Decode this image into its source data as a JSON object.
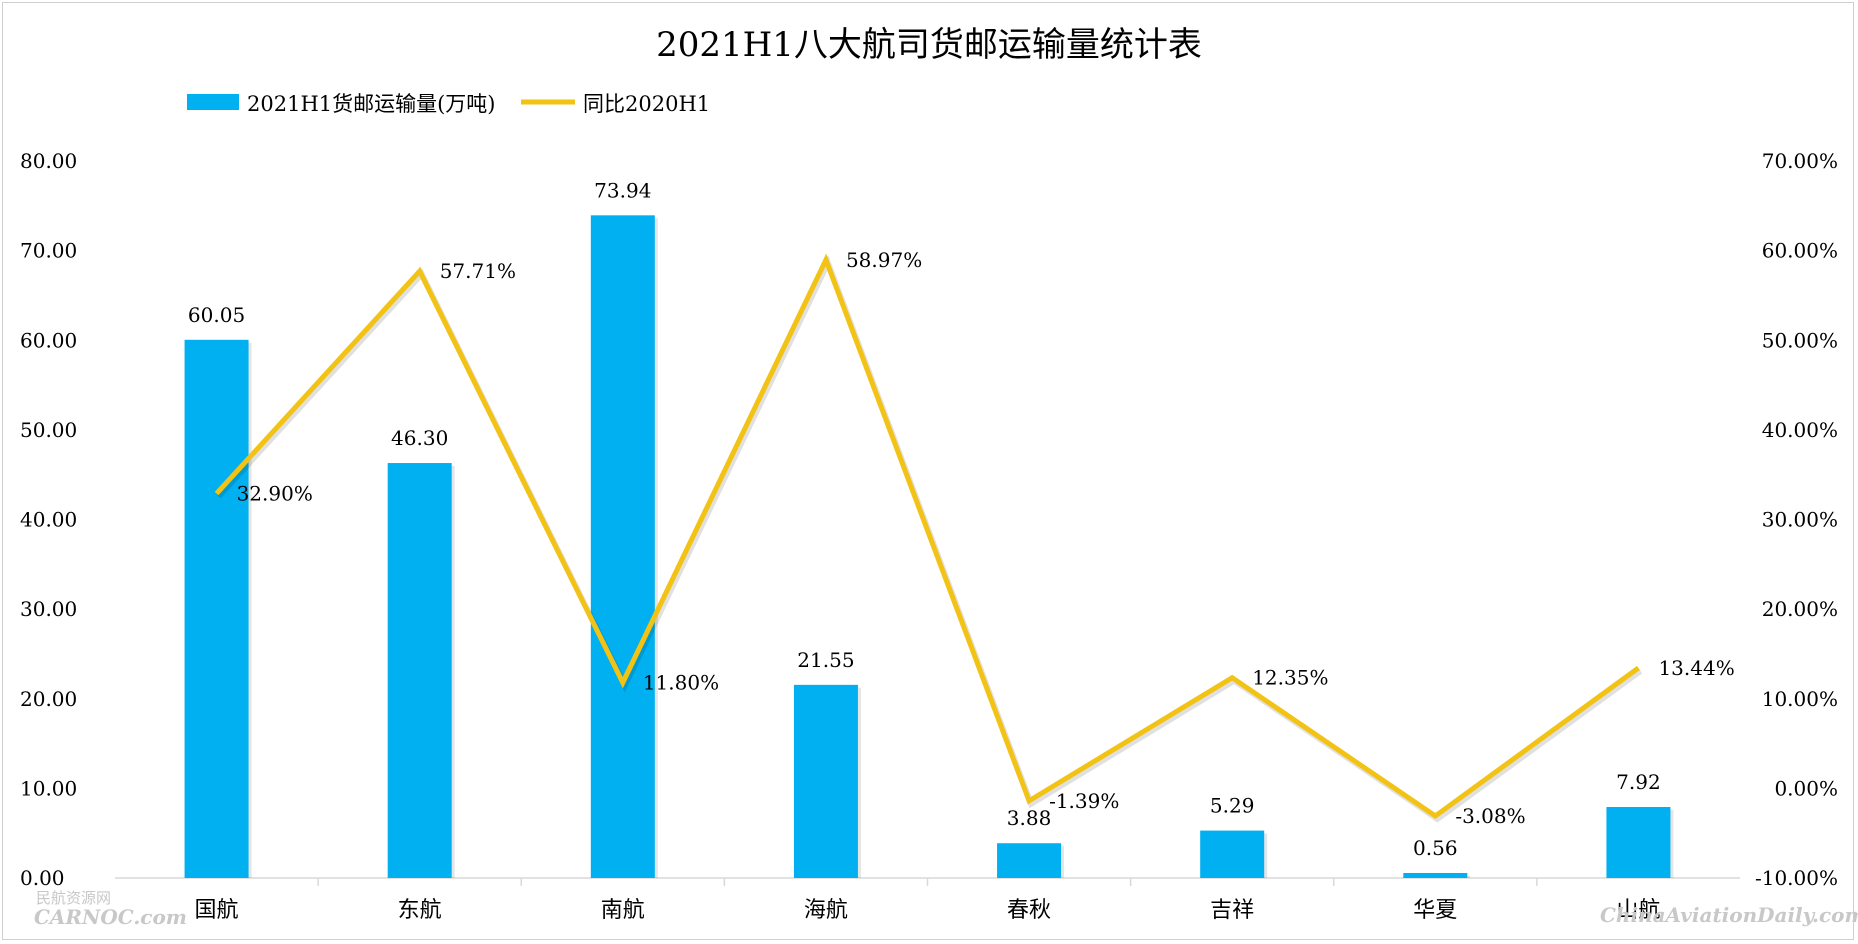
{
  "chart_data": {
    "type": "bar",
    "title": "2021H1八大航司货邮运输量统计表",
    "categories": [
      "国航",
      "东航",
      "南航",
      "海航",
      "春秋",
      "吉祥",
      "华夏",
      "山航"
    ],
    "series": [
      {
        "name": "2021H1货邮运输量(万吨)",
        "type": "bar",
        "axis": "left",
        "color": "#00b0f0",
        "values": [
          60.05,
          46.3,
          73.94,
          21.55,
          3.88,
          5.29,
          0.56,
          7.92
        ],
        "labels": [
          "60.05",
          "46.30",
          "73.94",
          "21.55",
          "3.88",
          "5.29",
          "0.56",
          "7.92"
        ]
      },
      {
        "name": "同比2020H1",
        "type": "line",
        "axis": "right",
        "color": "#f2c314",
        "values": [
          32.9,
          57.71,
          11.8,
          58.97,
          -1.39,
          12.35,
          -3.08,
          13.44
        ],
        "labels": [
          "32.90%",
          "57.71%",
          "11.80%",
          "58.97%",
          "-1.39%",
          "12.35%",
          "-3.08%",
          "13.44%"
        ]
      }
    ],
    "y_left": {
      "ylim": [
        0,
        80
      ],
      "ticks": [
        "0.00",
        "10.00",
        "20.00",
        "30.00",
        "40.00",
        "50.00",
        "60.00",
        "70.00",
        "80.00"
      ]
    },
    "y_right": {
      "ylim": [
        -10,
        70
      ],
      "ticks": [
        "-10.00%",
        "0.00%",
        "10.00%",
        "20.00%",
        "30.00%",
        "40.00%",
        "50.00%",
        "60.00%",
        "70.00%"
      ]
    },
    "grid": false,
    "legend_position": "top-left"
  },
  "watermarks": {
    "left_top": "民航资源网",
    "left_bottom": "CARNOC.com",
    "right": "ChinaAviationDaily.com"
  }
}
